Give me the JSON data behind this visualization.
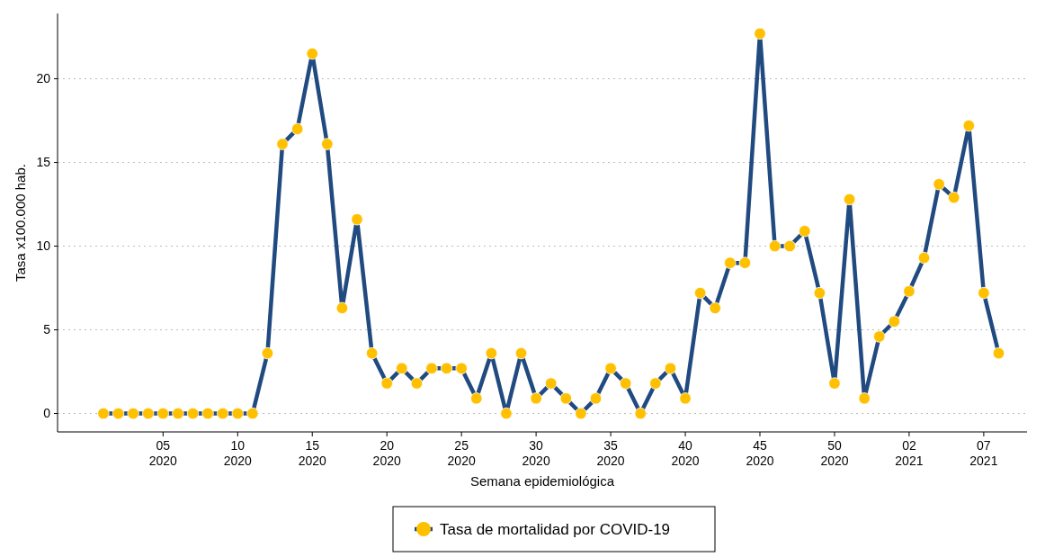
{
  "chart_data": {
    "type": "line",
    "xlabel": "Semana epidemiológica",
    "ylabel": "Tasa x100.000 hab.",
    "categories": [
      null,
      null,
      null,
      null,
      "05\n2020",
      null,
      null,
      null,
      null,
      "10\n2020",
      null,
      null,
      null,
      null,
      "15\n2020",
      null,
      null,
      null,
      null,
      "20\n2020",
      null,
      null,
      null,
      null,
      "25\n2020",
      null,
      null,
      null,
      null,
      "30\n2020",
      null,
      null,
      null,
      null,
      "35\n2020",
      null,
      null,
      null,
      null,
      "40\n2020",
      null,
      null,
      null,
      null,
      "45\n2020",
      null,
      null,
      null,
      null,
      "50\n2020",
      null,
      null,
      null,
      null,
      "02\n2021",
      null,
      null,
      null,
      null,
      "07\n2021",
      null
    ],
    "series": [
      {
        "name": "Tasa de mortalidad por COVID-19",
        "color": "#214a80",
        "colors": [
          "#ffc000",
          "#ffc000",
          "#ffc000",
          "#ffc000",
          "#ffc000",
          "#ffc000",
          "#ffc000",
          "#ffc000",
          "#ffc000",
          "#ffc000",
          "#ffc000",
          "#ffc000",
          "#ffc000",
          "#ffc000",
          "#ffc000",
          "#ffc000",
          "#ffc000",
          "#ffc000",
          "#ffc000",
          "#ffc000",
          "#ffc000",
          "#ffc000",
          "#ffc000",
          "#ffc000",
          "#ffc000",
          "#ffc000",
          "#ffc000",
          "#ffc000",
          "#ffc000",
          "#ffc000",
          "#ffc000",
          "#ffc000",
          "#ffc000",
          "#ffc000",
          "#ffc000",
          "#ffc000",
          "#ffc000",
          "#ffc000",
          "#ffc000",
          "#ffc000",
          "#ffc000",
          "#ffc000",
          "#ffc000",
          "#ffc000",
          "#ffc000",
          "#ffc000",
          "#ffc000",
          "#ffc000",
          "#ffc000",
          "#ffc000",
          "#ffc000",
          "#ffc000",
          "#ffc000",
          "#ffc000",
          "#ffc000",
          "#ffc000",
          "#ffc000",
          "#ffc000",
          "#ffc000",
          "#ffc000",
          "#ffc000"
        ],
        "values": [
          0,
          0,
          0,
          0,
          0,
          0,
          0,
          0,
          0,
          0,
          0,
          3.6,
          16.1,
          17.0,
          21.5,
          16.1,
          6.3,
          11.6,
          3.6,
          1.8,
          2.7,
          1.8,
          2.7,
          2.7,
          2.7,
          0.9,
          3.6,
          0,
          3.6,
          0.9,
          1.8,
          0.9,
          0,
          0.9,
          2.7,
          1.8,
          0,
          1.8,
          2.7,
          0.9,
          7.2,
          6.3,
          9.0,
          9.0,
          22.7,
          10.0,
          10.0,
          10.9,
          7.2,
          1.8,
          12.8,
          0.9,
          4.6,
          5.5,
          7.3,
          9.3,
          13.7,
          12.9,
          17.2,
          7.2,
          3.6
        ]
      }
    ],
    "ylim": [
      -1.1,
      23.9
    ],
    "yticks": [
      0,
      5,
      10,
      15,
      20
    ],
    "grid": "y",
    "legend": "bottom",
    "marker": "circle",
    "line_style": "solid"
  }
}
